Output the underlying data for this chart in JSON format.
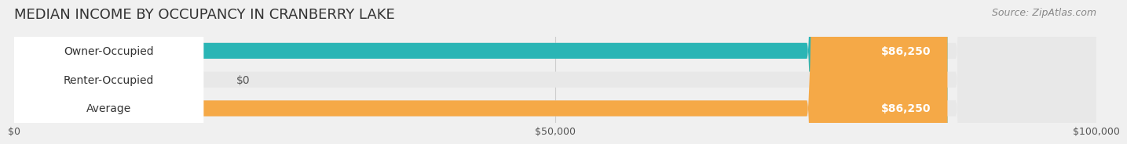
{
  "title": "MEDIAN INCOME BY OCCUPANCY IN CRANBERRY LAKE",
  "source": "Source: ZipAtlas.com",
  "categories": [
    "Owner-Occupied",
    "Renter-Occupied",
    "Average"
  ],
  "values": [
    86250,
    0,
    86250
  ],
  "bar_colors": [
    "#2ab5b5",
    "#c9a8d4",
    "#f5a947"
  ],
  "label_colors": [
    "#ffffff",
    "#555555",
    "#ffffff"
  ],
  "value_labels": [
    "$86,250",
    "$0",
    "$86,250"
  ],
  "xlim": [
    0,
    100000
  ],
  "xticks": [
    0,
    50000,
    100000
  ],
  "xtick_labels": [
    "$0",
    "$50,000",
    "$100,000"
  ],
  "background_color": "#f0f0f0",
  "bar_bg_color": "#e8e8e8",
  "title_fontsize": 13,
  "label_fontsize": 10,
  "source_fontsize": 9
}
